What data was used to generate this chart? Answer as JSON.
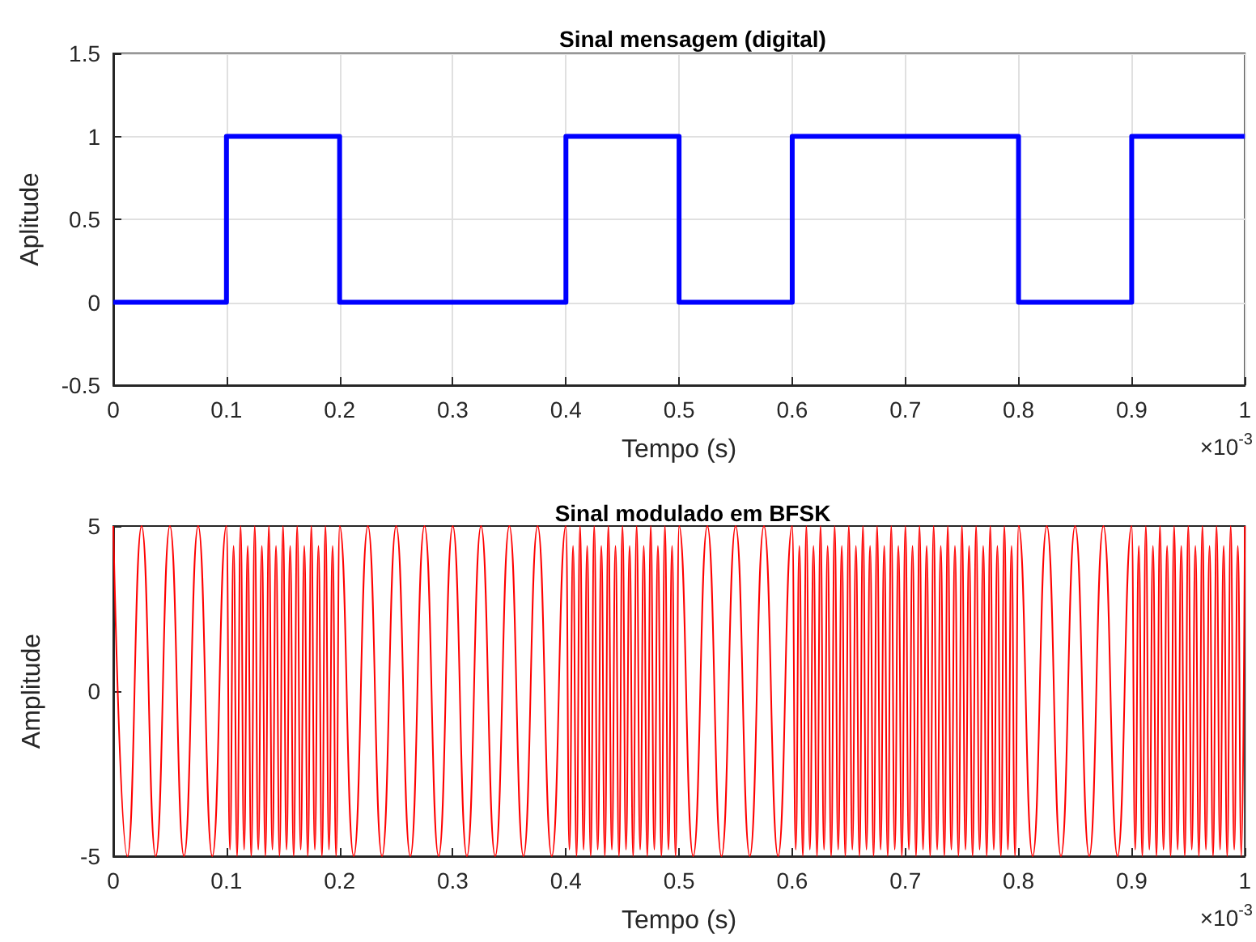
{
  "chart_data": [
    {
      "type": "step",
      "title": "Sinal mensagem (digital)",
      "xlabel": "Tempo (s)",
      "ylabel": "Aplitude",
      "annotations": [
        "×10$^{-3}$"
      ],
      "series": [
        {
          "color": "#0000ff",
          "x": [
            0,
            0.1,
            0.2,
            0.4,
            0.5,
            0.6,
            0.8,
            0.9,
            1
          ],
          "values": [
            0,
            1,
            0,
            1,
            0,
            1,
            0,
            1,
            1
          ]
        }
      ],
      "xlim": [
        0,
        1
      ],
      "xticks": [
        0,
        0.1,
        0.2,
        0.3,
        0.4,
        0.5,
        0.6,
        0.7,
        0.8,
        0.9,
        1
      ],
      "ylim": [
        -0.5,
        1.5
      ],
      "yticks": [
        -0.5,
        0,
        0.5,
        1,
        1.5
      ],
      "grid": true,
      "marker": "none",
      "line_style": "solid"
    },
    {
      "type": "line",
      "title": "Sinal modulado em BFSK",
      "xlabel": "Tempo (s)",
      "ylabel": "Amplitude",
      "annotations": [
        "×10$^{-3}$"
      ],
      "series": [
        {
          "color": "#ff0000",
          "x": [
            0,
            0.0125,
            0.025,
            0.0375,
            0.05,
            0.0625,
            0.075,
            0.0875,
            0.1,
            0.1031,
            0.1063,
            0.1094,
            0.1125,
            0.1156,
            0.1188,
            0.1219,
            0.125,
            0.1281,
            0.1313,
            0.1344,
            0.1375,
            0.1406,
            0.1438,
            0.1469,
            0.15,
            0.1531,
            0.1563,
            0.1594,
            0.1625,
            0.1656,
            0.1688,
            0.1719,
            0.175,
            0.1781,
            0.1813,
            0.1844,
            0.1875,
            0.1906,
            0.1938,
            0.1969,
            0.2,
            0.2125,
            0.225,
            0.2375,
            0.25,
            0.2625,
            0.275,
            0.2875,
            0.3,
            0.3125,
            0.325,
            0.3375,
            0.35,
            0.3625,
            0.375,
            0.3875,
            0.4,
            0.4031,
            0.4063,
            0.4094,
            0.4125,
            0.4156,
            0.4188,
            0.4219,
            0.425,
            0.4281,
            0.4313,
            0.4344,
            0.4375,
            0.4406,
            0.4438,
            0.4469,
            0.45,
            0.4531,
            0.4563,
            0.4594,
            0.4625,
            0.4656,
            0.4688,
            0.4719,
            0.475,
            0.4781,
            0.4813,
            0.4844,
            0.4875,
            0.4906,
            0.4938,
            0.4969,
            0.5,
            0.5125,
            0.525,
            0.5375,
            0.55,
            0.5625,
            0.575,
            0.5875,
            0.6,
            0.6031,
            0.6063,
            0.6094,
            0.6125,
            0.6156,
            0.6188,
            0.6219,
            0.625,
            0.6281,
            0.6313,
            0.6344,
            0.6375,
            0.6406,
            0.6438,
            0.6469,
            0.65,
            0.6531,
            0.6563,
            0.6594,
            0.6625,
            0.6656,
            0.6688,
            0.6719,
            0.675,
            0.6781,
            0.6813,
            0.6844,
            0.6875,
            0.6906,
            0.6938,
            0.6969,
            0.7,
            0.7031,
            0.7063,
            0.7094,
            0.7125,
            0.7156,
            0.7188,
            0.7219,
            0.725,
            0.7281,
            0.7313,
            0.7344,
            0.7375,
            0.7406,
            0.7438,
            0.7469,
            0.75,
            0.7531,
            0.7563,
            0.7594,
            0.7625,
            0.7656,
            0.7688,
            0.7719,
            0.775,
            0.7781,
            0.7813,
            0.7844,
            0.7875,
            0.7906,
            0.7938,
            0.7969,
            0.8,
            0.8125,
            0.825,
            0.8375,
            0.85,
            0.8625,
            0.875,
            0.8875,
            0.9,
            0.9031,
            0.9063,
            0.9094,
            0.9125,
            0.9156,
            0.9188,
            0.9219,
            0.925,
            0.9281,
            0.9313,
            0.9344,
            0.9375,
            0.9406,
            0.9438,
            0.9469,
            0.95,
            0.9531,
            0.9563,
            0.9594,
            0.9625,
            0.9656,
            0.9688,
            0.9719,
            0.975,
            0.9781,
            0.9813,
            0.9844,
            0.9875,
            0.9906,
            0.9938,
            0.9969,
            1
          ],
          "values": [
            5,
            -5,
            5,
            -5,
            5,
            -5,
            5,
            -5,
            5,
            -4.8,
            4.4,
            -5,
            5,
            -4.8,
            4.4,
            -5,
            5,
            -4.8,
            4.4,
            -5,
            5,
            -4.8,
            4.4,
            -5,
            5,
            -4.8,
            4.4,
            -5,
            5,
            -4.8,
            4.4,
            -5,
            5,
            -4.8,
            4.4,
            -5,
            5,
            -4.8,
            4.4,
            -5,
            5,
            -5,
            5,
            -5,
            5,
            -5,
            5,
            -5,
            5,
            -5,
            5,
            -5,
            5,
            -5,
            5,
            -5,
            5,
            -4.8,
            4.4,
            -5,
            5,
            -4.8,
            4.4,
            -5,
            5,
            -4.8,
            4.4,
            -5,
            5,
            -4.8,
            4.4,
            -5,
            5,
            -4.8,
            4.4,
            -5,
            5,
            -4.8,
            4.4,
            -5,
            5,
            -4.8,
            4.4,
            -5,
            5,
            -4.8,
            4.4,
            -5,
            5,
            -5,
            5,
            -5,
            5,
            -5,
            5,
            -5,
            5,
            -4.8,
            4.4,
            -5,
            5,
            -4.8,
            4.4,
            -5,
            5,
            -4.8,
            4.4,
            -5,
            5,
            -4.8,
            4.4,
            -5,
            5,
            -4.8,
            4.4,
            -5,
            5,
            -4.8,
            4.4,
            -5,
            5,
            -4.8,
            4.4,
            -5,
            5,
            -4.8,
            4.4,
            -5,
            5,
            -4.8,
            4.4,
            -5,
            5,
            -4.8,
            4.4,
            -5,
            5,
            -4.8,
            4.4,
            -5,
            5,
            -4.8,
            4.4,
            -5,
            5,
            -4.8,
            4.4,
            -5,
            5,
            -4.8,
            4.4,
            -5,
            5,
            -4.8,
            4.4,
            -5,
            5,
            -4.8,
            4.4,
            -5,
            5,
            -5,
            5,
            -5,
            5,
            -5,
            5,
            -5,
            5,
            -4.8,
            4.4,
            -5,
            5,
            -4.8,
            4.4,
            -5,
            5,
            -4.8,
            4.4,
            -5,
            5,
            -4.8,
            4.4,
            -5,
            5,
            -4.8,
            4.4,
            -5,
            5,
            -4.8,
            4.4,
            -5,
            5,
            -4.8,
            4.4,
            -5,
            5,
            -4.8,
            4.4,
            -5,
            5
          ]
        }
      ],
      "xlim": [
        0,
        1
      ],
      "xticks": [
        0,
        0.1,
        0.2,
        0.3,
        0.4,
        0.5,
        0.6,
        0.7,
        0.8,
        0.9,
        1
      ],
      "ylim": [
        -5,
        5
      ],
      "yticks": [
        -5,
        0,
        5
      ],
      "grid": false,
      "marker": "none",
      "line_style": "solid"
    }
  ]
}
